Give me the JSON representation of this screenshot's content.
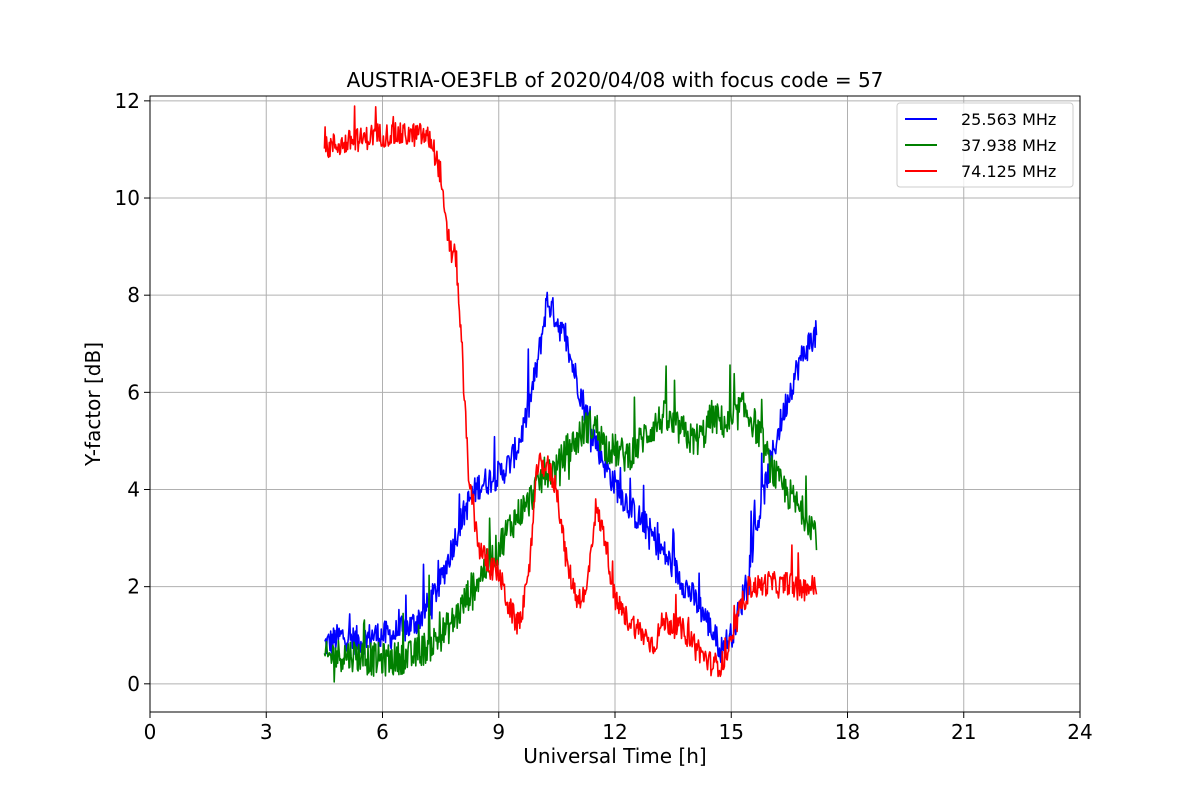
{
  "chart_data": {
    "type": "line",
    "title": "AUSTRIA-OE3FLB of 2020/04/08 with focus code = 57",
    "xlabel": "Universal Time [h]",
    "ylabel": "Y-factor [dB]",
    "xlim": [
      0,
      24
    ],
    "ylim": [
      -0.58,
      12.1
    ],
    "xticks": [
      0,
      3,
      6,
      9,
      12,
      15,
      18,
      21,
      24
    ],
    "yticks": [
      0,
      2,
      4,
      6,
      8,
      10,
      12
    ],
    "grid": true,
    "legend_position": "top-right",
    "series": [
      {
        "name": "25.563 MHz",
        "color": "#0000ff",
        "x": [
          4.5,
          4.75,
          5.0,
          5.25,
          5.5,
          5.75,
          6.0,
          6.25,
          6.5,
          6.75,
          7.0,
          7.25,
          7.5,
          7.75,
          8.0,
          8.25,
          8.5,
          8.75,
          9.0,
          9.25,
          9.5,
          9.75,
          10.0,
          10.25,
          10.5,
          10.75,
          11.0,
          11.25,
          11.5,
          11.75,
          12.0,
          12.25,
          12.5,
          12.75,
          13.0,
          13.25,
          13.5,
          13.75,
          14.0,
          14.25,
          14.5,
          14.75,
          15.0,
          15.25,
          15.5,
          15.75,
          16.0,
          16.25,
          16.5,
          16.75,
          17.0,
          17.2
        ],
        "y": [
          0.8,
          0.9,
          1.0,
          0.9,
          0.9,
          1.0,
          1.0,
          1.0,
          1.1,
          1.2,
          1.4,
          1.7,
          2.1,
          2.7,
          3.3,
          3.8,
          4.1,
          4.2,
          4.3,
          4.5,
          4.9,
          5.6,
          6.6,
          7.9,
          7.5,
          7.0,
          6.3,
          5.6,
          5.0,
          4.5,
          4.1,
          3.8,
          3.5,
          3.3,
          3.0,
          2.7,
          2.4,
          2.1,
          1.8,
          1.5,
          1.1,
          0.7,
          1.0,
          1.6,
          2.6,
          3.6,
          4.5,
          5.3,
          6.0,
          6.6,
          7.0,
          7.2
        ],
        "noise": 0.3
      },
      {
        "name": "37.938 MHz",
        "color": "#008000",
        "x": [
          4.5,
          4.75,
          5.0,
          5.25,
          5.5,
          5.75,
          6.0,
          6.25,
          6.5,
          6.75,
          7.0,
          7.25,
          7.5,
          7.75,
          8.0,
          8.25,
          8.5,
          8.75,
          9.0,
          9.25,
          9.5,
          9.75,
          10.0,
          10.25,
          10.5,
          10.75,
          11.0,
          11.25,
          11.5,
          11.75,
          12.0,
          12.25,
          12.5,
          12.75,
          13.0,
          13.25,
          13.5,
          13.75,
          14.0,
          14.25,
          14.5,
          14.75,
          15.0,
          15.25,
          15.5,
          15.75,
          16.0,
          16.25,
          16.5,
          16.75,
          17.0,
          17.2
        ],
        "y": [
          0.5,
          0.6,
          0.6,
          0.6,
          0.55,
          0.5,
          0.5,
          0.5,
          0.55,
          0.55,
          0.7,
          0.8,
          1.0,
          1.2,
          1.5,
          1.9,
          2.2,
          2.5,
          2.8,
          3.2,
          3.5,
          3.7,
          4.1,
          4.4,
          4.4,
          4.8,
          5.0,
          5.3,
          5.3,
          4.9,
          4.8,
          4.7,
          4.8,
          5.1,
          5.3,
          5.5,
          5.3,
          5.2,
          5.0,
          5.1,
          5.5,
          5.4,
          5.3,
          5.7,
          5.5,
          5.1,
          4.5,
          4.1,
          3.9,
          3.6,
          3.4,
          3.1
        ],
        "noise": 0.35
      },
      {
        "name": "74.125 MHz",
        "color": "#ff0000",
        "x": [
          4.5,
          4.75,
          5.0,
          5.25,
          5.5,
          5.75,
          6.0,
          6.25,
          6.5,
          6.75,
          7.0,
          7.25,
          7.5,
          7.6,
          7.75,
          7.9,
          8.0,
          8.1,
          8.25,
          8.5,
          8.75,
          9.0,
          9.25,
          9.5,
          9.75,
          10.0,
          10.25,
          10.5,
          10.75,
          11.0,
          11.25,
          11.5,
          11.75,
          12.0,
          12.25,
          12.5,
          12.75,
          13.0,
          13.25,
          13.5,
          13.75,
          14.0,
          14.25,
          14.5,
          14.75,
          15.0,
          15.25,
          15.5,
          15.75,
          16.0,
          16.25,
          16.5,
          16.75,
          17.0,
          17.2
        ],
        "y": [
          11.0,
          11.1,
          11.1,
          11.2,
          11.2,
          11.3,
          11.3,
          11.3,
          11.3,
          11.3,
          11.3,
          11.2,
          10.5,
          9.6,
          8.9,
          8.8,
          7.5,
          6.0,
          4.0,
          2.8,
          2.4,
          2.3,
          1.6,
          1.2,
          2.0,
          4.5,
          4.5,
          4.0,
          2.5,
          1.8,
          1.8,
          3.6,
          3.0,
          1.7,
          1.4,
          1.2,
          1.0,
          0.8,
          1.3,
          1.2,
          1.1,
          0.9,
          0.6,
          0.4,
          0.4,
          0.8,
          1.6,
          2.0,
          2.0,
          2.1,
          2.0,
          2.1,
          1.9,
          2.0,
          2.0
        ],
        "noise": 0.25
      }
    ]
  }
}
